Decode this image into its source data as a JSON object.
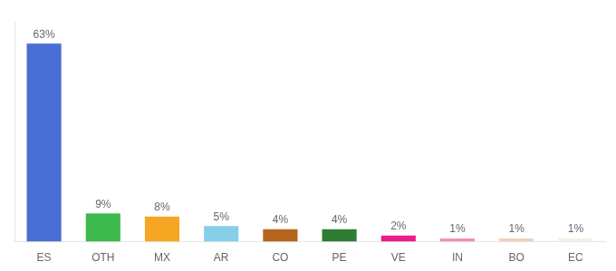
{
  "chart_data": {
    "type": "bar",
    "categories": [
      "ES",
      "OTH",
      "MX",
      "AR",
      "CO",
      "PE",
      "VE",
      "IN",
      "BO",
      "EC"
    ],
    "values": [
      63,
      9,
      8,
      5,
      4,
      4,
      2,
      1,
      1,
      1
    ],
    "value_labels": [
      "63%",
      "9%",
      "8%",
      "5%",
      "4%",
      "4%",
      "2%",
      "1%",
      "1%",
      "1%"
    ],
    "colors": [
      "#4a6fd4",
      "#3dba4e",
      "#f5a623",
      "#87ceeb",
      "#b5651d",
      "#2e7d32",
      "#e91e8c",
      "#f48fb1",
      "#f2cfc0",
      "#f5f0e0"
    ],
    "ylim": [
      0,
      70
    ],
    "data_labels": true,
    "tick_labels": "x",
    "grid": false
  }
}
